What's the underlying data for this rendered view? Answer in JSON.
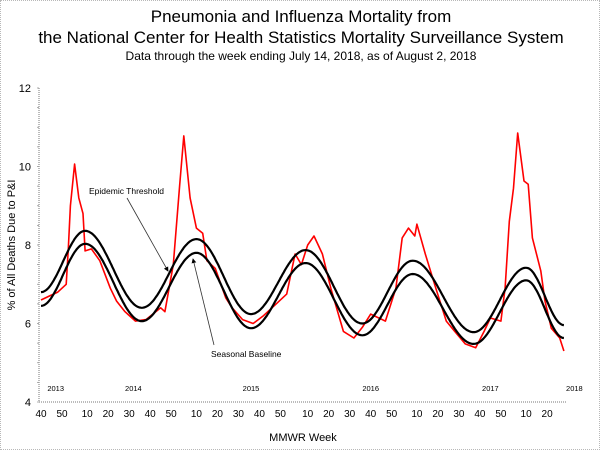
{
  "chart_data": {
    "type": "line",
    "title": "Pneumonia and Influenza Mortality from",
    "title_line2": "the National Center for Health Statistics Mortality Surveillance System",
    "subtitle": "Data through the week ending July 14, 2018, as of August 2, 2018",
    "xlabel": "MMWR Week",
    "ylabel": "% of All Deaths Due to P&I",
    "ylim": [
      4,
      12
    ],
    "xlim": [
      "2013-40",
      "2018-28"
    ],
    "yticks": [
      "4",
      "6",
      "8",
      "10",
      "12"
    ],
    "xticks": [
      {
        "week": "2013-40",
        "label": "40"
      },
      {
        "week": "2013-50",
        "label": "50"
      },
      {
        "week": "2014-10",
        "label": "10"
      },
      {
        "week": "2014-20",
        "label": "20"
      },
      {
        "week": "2014-30",
        "label": "30"
      },
      {
        "week": "2014-40",
        "label": "40"
      },
      {
        "week": "2014-50",
        "label": "50"
      },
      {
        "week": "2015-10",
        "label": "10"
      },
      {
        "week": "2015-20",
        "label": "20"
      },
      {
        "week": "2015-30",
        "label": "30"
      },
      {
        "week": "2015-40",
        "label": "40"
      },
      {
        "week": "2015-50",
        "label": "50"
      },
      {
        "week": "2016-10",
        "label": "10"
      },
      {
        "week": "2016-20",
        "label": "20"
      },
      {
        "week": "2016-30",
        "label": "30"
      },
      {
        "week": "2016-40",
        "label": "40"
      },
      {
        "week": "2016-50",
        "label": "50"
      },
      {
        "week": "2017-10",
        "label": "10"
      },
      {
        "week": "2017-20",
        "label": "20"
      },
      {
        "week": "2017-30",
        "label": "30"
      },
      {
        "week": "2017-40",
        "label": "40"
      },
      {
        "week": "2017-50",
        "label": "50"
      },
      {
        "week": "2018-10",
        "label": "10"
      },
      {
        "week": "2018-20",
        "label": "20"
      }
    ],
    "year_labels": [
      "2013",
      "2014",
      "2015",
      "2016",
      "2017",
      "2018"
    ],
    "grid": false,
    "legend": "none",
    "annotations": [
      "Epidemic Threshold",
      "Seasonal Baseline"
    ],
    "series": [
      {
        "key": "observed",
        "color": "#ff0000",
        "points": [
          [
            "2013-40",
            6.6
          ],
          [
            "2013-44",
            6.7
          ],
          [
            "2013-48",
            6.8
          ],
          [
            "2013-52",
            7.0
          ],
          [
            "2014-01",
            7.9
          ],
          [
            "2014-02",
            9.0
          ],
          [
            "2014-04",
            10.06
          ],
          [
            "2014-06",
            9.2
          ],
          [
            "2014-08",
            8.8
          ],
          [
            "2014-09",
            7.85
          ],
          [
            "2014-12",
            7.9
          ],
          [
            "2014-16",
            7.6
          ],
          [
            "2014-21",
            6.9
          ],
          [
            "2014-24",
            6.57
          ],
          [
            "2014-28",
            6.3
          ],
          [
            "2014-33",
            6.06
          ],
          [
            "2014-38",
            6.1
          ],
          [
            "2014-45",
            6.4
          ],
          [
            "2014-47",
            6.3
          ],
          [
            "2014-51",
            7.5
          ],
          [
            "2015-02",
            9.5
          ],
          [
            "2015-04",
            10.78
          ],
          [
            "2015-07",
            9.2
          ],
          [
            "2015-10",
            8.43
          ],
          [
            "2015-13",
            8.3
          ],
          [
            "2015-15",
            7.6
          ],
          [
            "2015-19",
            7.4
          ],
          [
            "2015-24",
            6.65
          ],
          [
            "2015-27",
            6.4
          ],
          [
            "2015-32",
            6.1
          ],
          [
            "2015-37",
            6.0
          ],
          [
            "2015-42",
            6.2
          ],
          [
            "2015-46",
            6.4
          ],
          [
            "2015-53",
            6.75
          ],
          [
            "2016-04",
            7.77
          ],
          [
            "2016-07",
            7.5
          ],
          [
            "2016-10",
            8.0
          ],
          [
            "2016-13",
            8.23
          ],
          [
            "2016-17",
            7.77
          ],
          [
            "2016-21",
            6.9
          ],
          [
            "2016-27",
            5.8
          ],
          [
            "2016-32",
            5.63
          ],
          [
            "2016-36",
            5.9
          ],
          [
            "2016-40",
            6.24
          ],
          [
            "2016-47",
            6.06
          ],
          [
            "2016-52",
            6.9
          ],
          [
            "2017-03",
            8.18
          ],
          [
            "2017-06",
            8.43
          ],
          [
            "2017-09",
            8.23
          ],
          [
            "2017-10",
            8.53
          ],
          [
            "2017-14",
            7.77
          ],
          [
            "2017-19",
            6.9
          ],
          [
            "2017-24",
            6.06
          ],
          [
            "2017-28",
            5.8
          ],
          [
            "2017-33",
            5.48
          ],
          [
            "2017-38",
            5.38
          ],
          [
            "2017-42",
            5.8
          ],
          [
            "2017-45",
            6.14
          ],
          [
            "2017-50",
            6.06
          ],
          [
            "2017-52",
            6.9
          ],
          [
            "2018-02",
            8.6
          ],
          [
            "2018-04",
            9.45
          ],
          [
            "2018-06",
            10.85
          ],
          [
            "2018-09",
            9.63
          ],
          [
            "2018-11",
            9.55
          ],
          [
            "2018-13",
            8.18
          ],
          [
            "2018-17",
            7.34
          ],
          [
            "2018-19",
            6.57
          ],
          [
            "2018-22",
            5.88
          ],
          [
            "2018-26",
            5.63
          ],
          [
            "2018-28",
            5.3
          ]
        ]
      },
      {
        "key": "threshold",
        "name": "Epidemic Threshold",
        "color": "#000000",
        "points": [
          [
            "2013-40",
            6.8
          ],
          [
            "2014-09",
            8.36
          ],
          [
            "2014-36",
            6.4
          ],
          [
            "2015-10",
            8.15
          ],
          [
            "2015-36",
            6.24
          ],
          [
            "2016-09",
            7.87
          ],
          [
            "2016-36",
            6.0
          ],
          [
            "2017-08",
            7.6
          ],
          [
            "2017-37",
            5.78
          ],
          [
            "2018-10",
            7.42
          ],
          [
            "2018-28",
            5.96
          ]
        ]
      },
      {
        "key": "baseline",
        "name": "Seasonal Baseline",
        "color": "#000000",
        "points": [
          [
            "2013-40",
            6.45
          ],
          [
            "2014-09",
            8.03
          ],
          [
            "2014-36",
            6.06
          ],
          [
            "2015-10",
            7.8
          ],
          [
            "2015-36",
            5.88
          ],
          [
            "2016-09",
            7.54
          ],
          [
            "2016-36",
            5.7
          ],
          [
            "2017-08",
            7.26
          ],
          [
            "2017-37",
            5.48
          ],
          [
            "2018-10",
            7.1
          ],
          [
            "2018-28",
            5.63
          ]
        ]
      }
    ]
  }
}
